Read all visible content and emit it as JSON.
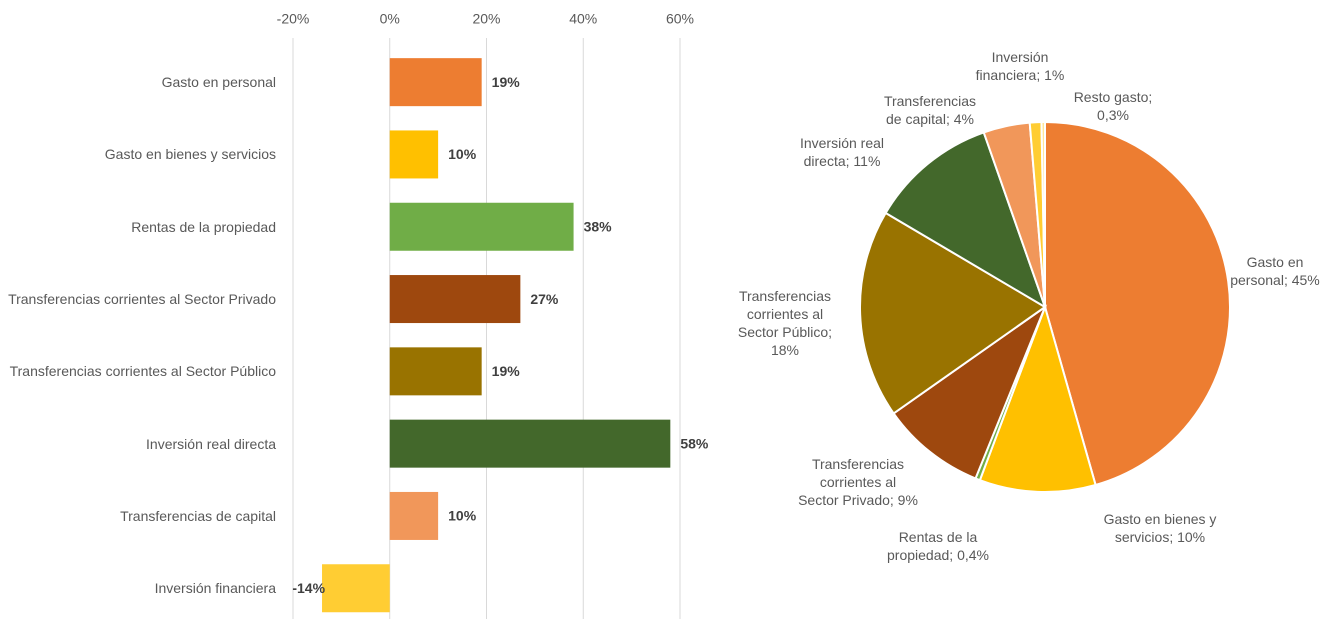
{
  "chart_data": [
    {
      "type": "bar",
      "orientation": "horizontal",
      "categories": [
        "Gasto en personal",
        "Gasto en bienes y servicios",
        "Rentas de la propiedad",
        "Transferencias corrientes al Sector Privado",
        "Transferencias corrientes al Sector Público",
        "Inversión real directa",
        "Transferencias de capital",
        "Inversión financiera"
      ],
      "values": [
        19,
        10,
        38,
        27,
        19,
        58,
        10,
        -14
      ],
      "value_labels": [
        "19%",
        "10%",
        "38%",
        "27%",
        "19%",
        "58%",
        "10%",
        "-14%"
      ],
      "colors": [
        "#ED7D31",
        "#FFC000",
        "#70AD47",
        "#9E480E",
        "#997300",
        "#43682B",
        "#F1975A",
        "#FFCD33"
      ],
      "xlim": [
        -20,
        60
      ],
      "xticks": [
        {
          "value": -20,
          "label": "-20%"
        },
        {
          "value": 0,
          "label": "0%"
        },
        {
          "value": 20,
          "label": "20%"
        },
        {
          "value": 40,
          "label": "40%"
        },
        {
          "value": 60,
          "label": "60%"
        }
      ],
      "grid": true
    },
    {
      "type": "pie",
      "values": [
        45,
        10,
        0.4,
        9,
        18,
        11,
        4,
        1,
        0.3
      ],
      "value_labels": [
        "Gasto en personal; 45%",
        "Gasto en bienes y servicios; 10%",
        "Rentas de la propiedad; 0,4%",
        "Transferencias corrientes al Sector Privado; 9%",
        "Transferencias corrientes al Sector Público; 18%",
        "Inversión real directa; 11%",
        "Transferencias de capital; 4%",
        "Inversión financiera; 1%",
        "Resto gasto; 0,3%"
      ],
      "colors": [
        "#ED7D31",
        "#FFC000",
        "#70AD47",
        "#9E480E",
        "#997300",
        "#43682B",
        "#F1975A",
        "#FFCD33",
        "#FFE699"
      ]
    }
  ]
}
